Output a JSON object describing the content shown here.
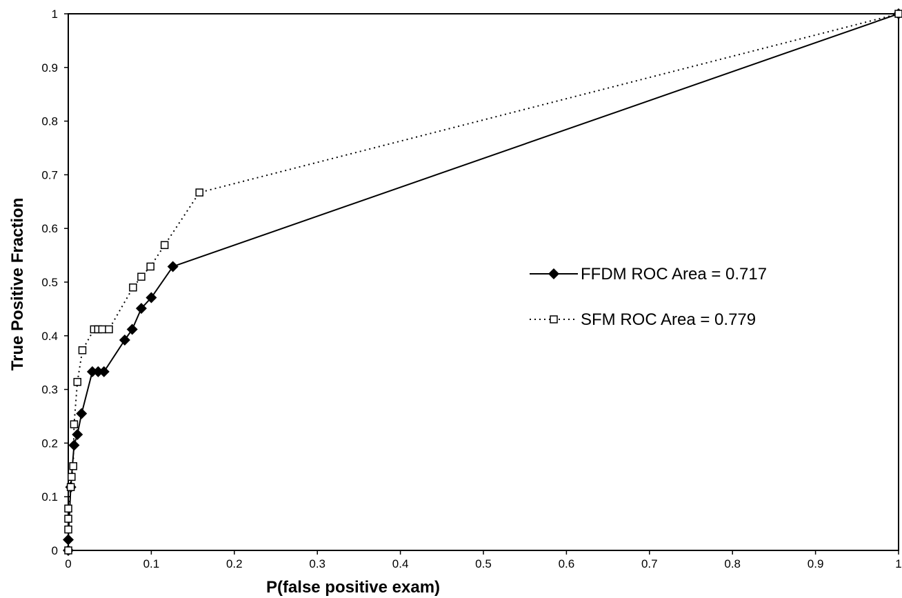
{
  "chart_data": {
    "type": "line",
    "xlabel": "P(false positive exam)",
    "ylabel": "True Positive Fraction",
    "xlim": [
      0,
      1
    ],
    "ylim": [
      0,
      1
    ],
    "x_ticks": [
      "0",
      "0.1",
      "0.2",
      "0.3",
      "0.4",
      "0.5",
      "0.6",
      "0.7",
      "0.8",
      "0.9",
      "1"
    ],
    "y_ticks": [
      "0",
      "0.1",
      "0.2",
      "0.3",
      "0.4",
      "0.5",
      "0.6",
      "0.7",
      "0.8",
      "0.9",
      "1"
    ],
    "grid": false,
    "legend_position": "right-center",
    "series": [
      {
        "name": "FFDM ROC Area = 0.717",
        "line_style": "solid",
        "marker": "filled-diamond",
        "color": "#000000",
        "x": [
          0,
          0,
          0.003,
          0.003,
          0.007,
          0.011,
          0.016,
          0.029,
          0.036,
          0.043,
          0.068,
          0.077,
          0.088,
          0.1,
          0.126,
          1
        ],
        "y": [
          0,
          0.02,
          0.118,
          0.118,
          0.196,
          0.216,
          0.255,
          0.333,
          0.333,
          0.333,
          0.392,
          0.412,
          0.451,
          0.471,
          0.529,
          1
        ]
      },
      {
        "name": "SFM ROC Area = 0.779",
        "line_style": "dotted",
        "marker": "open-square",
        "color": "#000000",
        "x": [
          0,
          0,
          0,
          0,
          0.003,
          0.004,
          0.006,
          0.007,
          0.011,
          0.017,
          0.031,
          0.036,
          0.041,
          0.049,
          0.078,
          0.088,
          0.099,
          0.116,
          0.158,
          1
        ],
        "y": [
          0,
          0.039,
          0.059,
          0.078,
          0.118,
          0.137,
          0.157,
          0.235,
          0.314,
          0.373,
          0.412,
          0.412,
          0.412,
          0.412,
          0.49,
          0.51,
          0.529,
          0.569,
          0.667,
          1
        ]
      }
    ]
  }
}
